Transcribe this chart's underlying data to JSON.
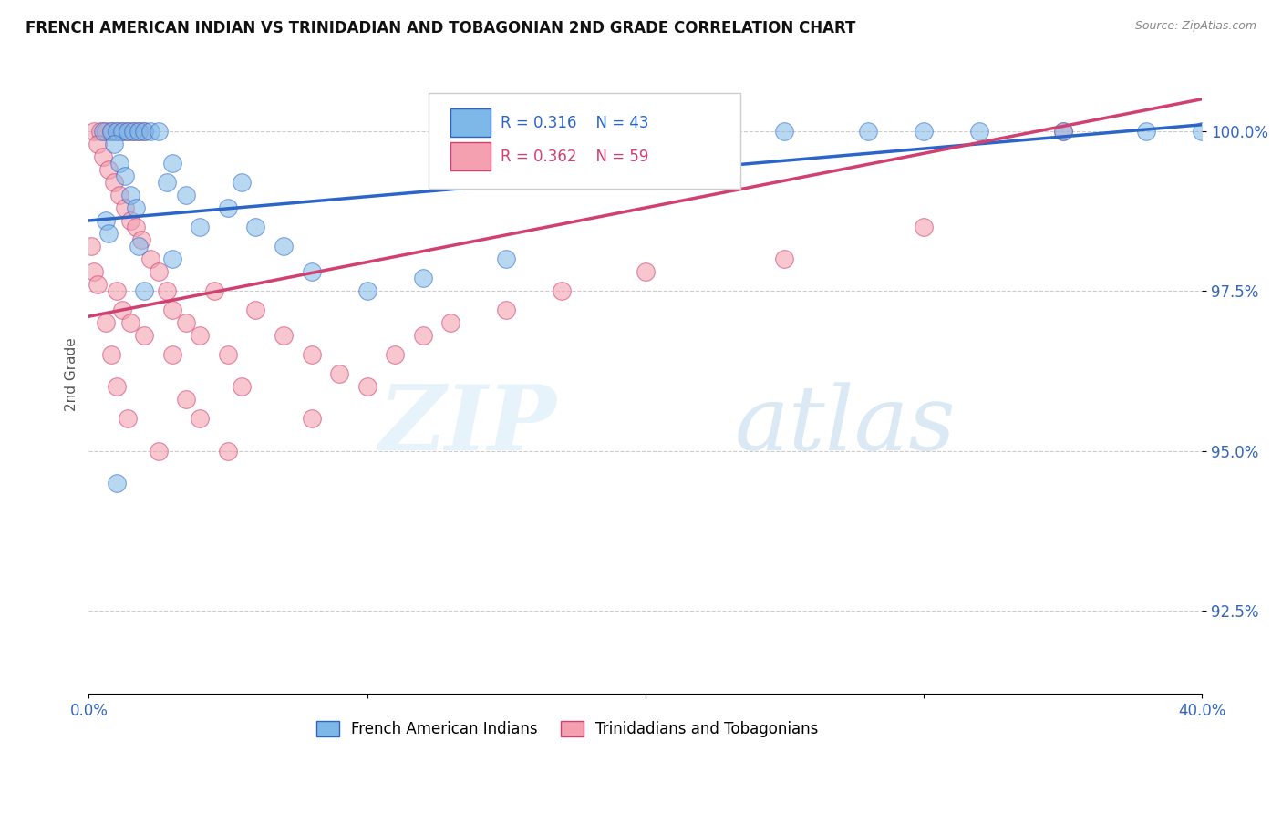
{
  "title": "FRENCH AMERICAN INDIAN VS TRINIDADIAN AND TOBAGONIAN 2ND GRADE CORRELATION CHART",
  "source": "Source: ZipAtlas.com",
  "ylabel": "2nd Grade",
  "ylabel_ticks": [
    92.5,
    95.0,
    97.5,
    100.0
  ],
  "ylabel_tick_labels": [
    "92.5%",
    "95.0%",
    "97.5%",
    "100.0%"
  ],
  "xlim": [
    0.0,
    40.0
  ],
  "ylim": [
    91.2,
    101.2
  ],
  "legend_blue_r": "R = 0.316",
  "legend_blue_n": "N = 43",
  "legend_pink_r": "R = 0.362",
  "legend_pink_n": "N = 59",
  "blue_color": "#7EB8E8",
  "pink_color": "#F4A0B0",
  "blue_line_color": "#2B65C8",
  "pink_line_color": "#D04070",
  "blue_line_x": [
    0.0,
    40.0
  ],
  "blue_line_y": [
    98.6,
    100.1
  ],
  "pink_line_x": [
    0.0,
    40.0
  ],
  "pink_line_y": [
    97.1,
    100.5
  ],
  "blue_x": [
    0.5,
    0.8,
    1.0,
    1.2,
    1.4,
    1.6,
    1.8,
    2.0,
    2.2,
    2.5,
    0.9,
    1.1,
    1.3,
    1.5,
    1.7,
    0.6,
    0.7,
    2.8,
    3.0,
    3.5,
    4.0,
    5.0,
    6.0,
    7.0,
    8.0,
    10.0,
    12.0,
    15.0,
    17.0,
    20.0,
    22.0,
    25.0,
    28.0,
    30.0,
    32.0,
    35.0,
    38.0,
    40.0,
    2.0,
    1.8,
    1.0,
    3.0,
    5.5
  ],
  "blue_y": [
    100.0,
    100.0,
    100.0,
    100.0,
    100.0,
    100.0,
    100.0,
    100.0,
    100.0,
    100.0,
    99.8,
    99.5,
    99.3,
    99.0,
    98.8,
    98.6,
    98.4,
    99.2,
    99.5,
    99.0,
    98.5,
    98.8,
    98.5,
    98.2,
    97.8,
    97.5,
    97.7,
    98.0,
    100.0,
    100.0,
    100.0,
    100.0,
    100.0,
    100.0,
    100.0,
    100.0,
    100.0,
    100.0,
    97.5,
    98.2,
    94.5,
    98.0,
    99.2
  ],
  "pink_x": [
    0.2,
    0.4,
    0.6,
    0.8,
    1.0,
    1.2,
    1.4,
    1.6,
    1.8,
    2.0,
    0.3,
    0.5,
    0.7,
    0.9,
    1.1,
    1.3,
    1.5,
    1.7,
    1.9,
    2.2,
    2.5,
    2.8,
    3.0,
    3.5,
    4.0,
    4.5,
    5.0,
    6.0,
    7.0,
    8.0,
    9.0,
    10.0,
    11.0,
    12.0,
    13.0,
    15.0,
    17.0,
    20.0,
    25.0,
    30.0,
    0.1,
    0.2,
    0.3,
    1.0,
    1.2,
    1.5,
    2.0,
    3.0,
    4.0,
    5.0,
    0.6,
    0.8,
    1.0,
    1.4,
    2.5,
    3.5,
    5.5,
    8.0,
    35.0
  ],
  "pink_y": [
    100.0,
    100.0,
    100.0,
    100.0,
    100.0,
    100.0,
    100.0,
    100.0,
    100.0,
    100.0,
    99.8,
    99.6,
    99.4,
    99.2,
    99.0,
    98.8,
    98.6,
    98.5,
    98.3,
    98.0,
    97.8,
    97.5,
    97.2,
    97.0,
    96.8,
    97.5,
    96.5,
    97.2,
    96.8,
    96.5,
    96.2,
    96.0,
    96.5,
    96.8,
    97.0,
    97.2,
    97.5,
    97.8,
    98.0,
    98.5,
    98.2,
    97.8,
    97.6,
    97.5,
    97.2,
    97.0,
    96.8,
    96.5,
    95.5,
    95.0,
    97.0,
    96.5,
    96.0,
    95.5,
    95.0,
    95.8,
    96.0,
    95.5,
    100.0
  ]
}
